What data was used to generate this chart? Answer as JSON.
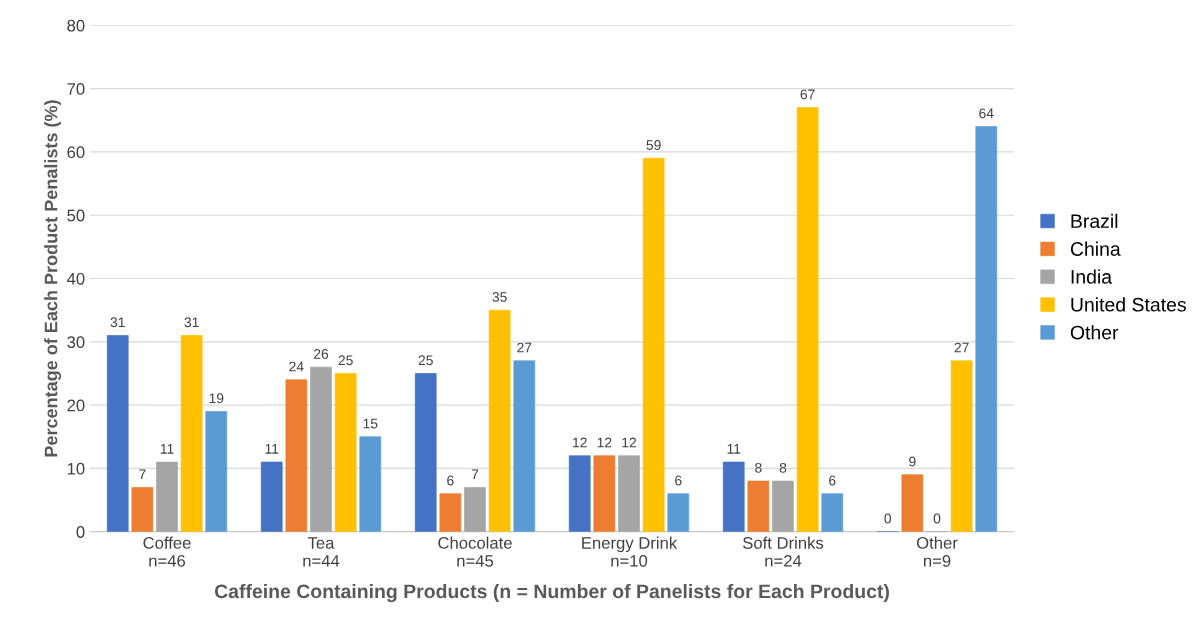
{
  "chart_data": {
    "type": "bar",
    "xlabel": "Caffeine Containing Products (n = Number of Panelists for Each Product)",
    "ylabel": "Percentage of Each Product Penalists (%)",
    "categories": [
      "Coffee\nn=46",
      "Tea\nn=44",
      "Chocolate\nn=45",
      "Energy Drink\nn=10",
      "Soft Drinks\nn=24",
      "Other\nn=9"
    ],
    "series": [
      {
        "name": "Brazil",
        "color": "#4472c4",
        "values": [
          31,
          11,
          25,
          12,
          11,
          0
        ],
        "value_labels": [
          "31",
          "11",
          "25",
          "12",
          "11",
          "0"
        ]
      },
      {
        "name": "China",
        "color": "#ed7d31",
        "values": [
          7,
          24,
          6,
          12,
          8,
          9
        ],
        "value_labels": [
          "7",
          "24",
          "6",
          "12",
          "8",
          "9"
        ]
      },
      {
        "name": "India",
        "color": "#a5a5a5",
        "values": [
          11,
          26,
          7,
          12,
          8,
          0
        ],
        "value_labels": [
          "11",
          "26",
          "7",
          "12",
          "8",
          "0"
        ]
      },
      {
        "name": "United States",
        "color": "#ffc000",
        "values": [
          31,
          25,
          35,
          59,
          67,
          27
        ],
        "value_labels": [
          "31",
          "25",
          "35",
          "59",
          "67",
          "27"
        ]
      },
      {
        "name": "Other",
        "color": "#5b9bd5",
        "values": [
          19,
          15,
          27,
          6,
          6,
          64
        ],
        "value_labels": [
          "19",
          "15",
          "27",
          "6",
          "6",
          "64"
        ]
      }
    ],
    "ylim": [
      0,
      80
    ],
    "yticks": [
      0,
      10,
      20,
      30,
      40,
      50,
      60,
      70,
      80
    ],
    "grid": "y",
    "legend": "right"
  }
}
